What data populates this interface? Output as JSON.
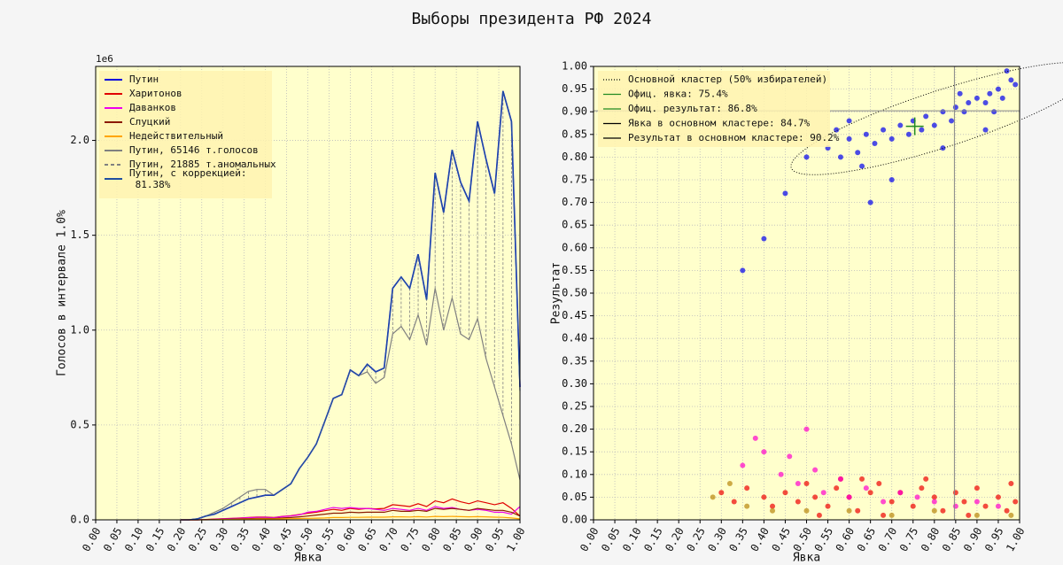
{
  "chart_data": [
    {
      "type": "line",
      "y_offset_label": "1e6",
      "xlabel": "Явка",
      "ylabel": "Голосов в интервале 1.0%",
      "xlim": [
        0,
        1
      ],
      "ylim": [
        0,
        2.39
      ],
      "xticks": [
        {
          "value": 0,
          "label": "0.00"
        },
        {
          "value": 0.05,
          "label": "0.05"
        },
        {
          "value": 0.1,
          "label": "0.10"
        },
        {
          "value": 0.15,
          "label": "0.15"
        },
        {
          "value": 0.2,
          "label": "0.20"
        },
        {
          "value": 0.25,
          "label": "0.25"
        },
        {
          "value": 0.3,
          "label": "0.30"
        },
        {
          "value": 0.35,
          "label": "0.35"
        },
        {
          "value": 0.4,
          "label": "0.40"
        },
        {
          "value": 0.45,
          "label": "0.45"
        },
        {
          "value": 0.5,
          "label": "0.50"
        },
        {
          "value": 0.55,
          "label": "0.55"
        },
        {
          "value": 0.6,
          "label": "0.60"
        },
        {
          "value": 0.65,
          "label": "0.65"
        },
        {
          "value": 0.7,
          "label": "0.70"
        },
        {
          "value": 0.75,
          "label": "0.75"
        },
        {
          "value": 0.8,
          "label": "0.80"
        },
        {
          "value": 0.85,
          "label": "0.85"
        },
        {
          "value": 0.9,
          "label": "0.90"
        },
        {
          "value": 0.95,
          "label": "0.95"
        },
        {
          "value": 1,
          "label": "1.00"
        }
      ],
      "yticks": [
        {
          "value": 0,
          "label": "0.0"
        },
        0.5,
        {
          "value": 1,
          "label": "1.0"
        },
        1.5,
        {
          "value": 2,
          "label": "2.0"
        }
      ],
      "grid": true,
      "x": [
        0.2,
        0.22,
        0.24,
        0.26,
        0.28,
        0.3,
        0.32,
        0.34,
        0.36,
        0.38,
        0.4,
        0.42,
        0.44,
        0.46,
        0.48,
        0.5,
        0.52,
        0.54,
        0.56,
        0.58,
        0.6,
        0.62,
        0.64,
        0.66,
        0.68,
        0.7,
        0.72,
        0.74,
        0.76,
        0.78,
        0.8,
        0.82,
        0.84,
        0.86,
        0.88,
        0.9,
        0.92,
        0.94,
        0.96,
        0.98,
        1.0
      ],
      "series": [
        {
          "name": "Путин",
          "color": "#0000dd",
          "values": [
            0,
            0,
            0.005,
            0.02,
            0.03,
            0.05,
            0.07,
            0.09,
            0.11,
            0.12,
            0.13,
            0.13,
            0.16,
            0.19,
            0.27,
            0.33,
            0.4,
            0.52,
            0.64,
            0.66,
            0.79,
            0.76,
            0.82,
            0.78,
            0.8,
            1.22,
            1.28,
            1.22,
            1.4,
            1.16,
            1.83,
            1.62,
            1.95,
            1.78,
            1.68,
            2.1,
            1.9,
            1.72,
            2.26,
            2.1,
            0.7
          ]
        },
        {
          "name": "Харитонов",
          "color": "#e00000",
          "values": [
            0,
            0,
            0,
            0.002,
            0.004,
            0.006,
            0.008,
            0.01,
            0.012,
            0.015,
            0.015,
            0.012,
            0.018,
            0.022,
            0.028,
            0.035,
            0.04,
            0.048,
            0.055,
            0.05,
            0.06,
            0.055,
            0.06,
            0.058,
            0.06,
            0.08,
            0.075,
            0.07,
            0.085,
            0.07,
            0.1,
            0.09,
            0.11,
            0.095,
            0.085,
            0.1,
            0.09,
            0.08,
            0.09,
            0.06,
            0.02
          ]
        },
        {
          "name": "Даванков",
          "color": "#ee00ee",
          "values": [
            0,
            0,
            0,
            0.001,
            0.003,
            0.005,
            0.007,
            0.009,
            0.011,
            0.013,
            0.013,
            0.011,
            0.017,
            0.02,
            0.026,
            0.04,
            0.045,
            0.055,
            0.065,
            0.06,
            0.065,
            0.06,
            0.06,
            0.055,
            0.05,
            0.06,
            0.055,
            0.05,
            0.06,
            0.05,
            0.07,
            0.06,
            0.065,
            0.055,
            0.05,
            0.055,
            0.05,
            0.04,
            0.04,
            0.03,
            0.07
          ]
        },
        {
          "name": "Слуцкий",
          "color": "#8b1a00",
          "values": [
            0,
            0,
            0,
            0.001,
            0.002,
            0.003,
            0.004,
            0.005,
            0.006,
            0.008,
            0.008,
            0.007,
            0.01,
            0.012,
            0.016,
            0.02,
            0.025,
            0.03,
            0.035,
            0.035,
            0.04,
            0.038,
            0.04,
            0.04,
            0.04,
            0.05,
            0.045,
            0.045,
            0.05,
            0.045,
            0.06,
            0.055,
            0.06,
            0.055,
            0.05,
            0.06,
            0.055,
            0.05,
            0.05,
            0.04,
            0.02
          ]
        },
        {
          "name": "Недействительный",
          "color": "#ffa500",
          "values": [
            0,
            0,
            0,
            0,
            0.001,
            0.002,
            0.002,
            0.003,
            0.003,
            0.004,
            0.004,
            0.004,
            0.005,
            0.006,
            0.007,
            0.008,
            0.009,
            0.01,
            0.012,
            0.012,
            0.013,
            0.013,
            0.014,
            0.014,
            0.014,
            0.016,
            0.016,
            0.015,
            0.017,
            0.015,
            0.018,
            0.017,
            0.018,
            0.017,
            0.016,
            0.017,
            0.016,
            0.014,
            0.013,
            0.01,
            0.005
          ]
        },
        {
          "name": "Путин, 65146 т.голосов",
          "color": "#808080",
          "values": [
            0,
            0,
            0.005,
            0.02,
            0.04,
            0.06,
            0.09,
            0.12,
            0.15,
            0.16,
            0.16,
            0.13,
            0.16,
            0.19,
            0.27,
            0.33,
            0.4,
            0.52,
            0.64,
            0.66,
            0.79,
            0.76,
            0.78,
            0.72,
            0.75,
            0.98,
            1.02,
            0.95,
            1.08,
            0.92,
            1.22,
            1.0,
            1.17,
            0.98,
            0.95,
            1.06,
            0.85,
            0.7,
            0.55,
            0.4,
            0.21
          ]
        },
        {
          "name": "Путин, 21885 т.аномальных",
          "color": "#808080",
          "style": "hatch"
        },
        {
          "name": "Путин, с коррекцией:\n 81.38%",
          "color": "#1f4fa0",
          "values": [
            0,
            0,
            0.005,
            0.02,
            0.03,
            0.05,
            0.07,
            0.09,
            0.11,
            0.12,
            0.13,
            0.13,
            0.16,
            0.19,
            0.27,
            0.33,
            0.4,
            0.52,
            0.64,
            0.66,
            0.79,
            0.76,
            0.82,
            0.78,
            0.8,
            1.22,
            1.28,
            1.22,
            1.4,
            1.16,
            1.83,
            1.62,
            1.95,
            1.78,
            1.68,
            2.1,
            1.9,
            1.72,
            2.26,
            2.1,
            0.68
          ]
        }
      ]
    },
    {
      "type": "scatter",
      "xlabel": "Явка",
      "ylabel": "Результат",
      "xlim": [
        0,
        1
      ],
      "ylim": [
        0,
        1
      ],
      "xticks": [
        {
          "value": 0,
          "label": "0.00"
        },
        {
          "value": 0.05,
          "label": "0.05"
        },
        {
          "value": 0.1,
          "label": "0.10"
        },
        {
          "value": 0.15,
          "label": "0.15"
        },
        {
          "value": 0.2,
          "label": "0.20"
        },
        {
          "value": 0.25,
          "label": "0.25"
        },
        {
          "value": 0.3,
          "label": "0.30"
        },
        {
          "value": 0.35,
          "label": "0.35"
        },
        {
          "value": 0.4,
          "label": "0.40"
        },
        {
          "value": 0.45,
          "label": "0.45"
        },
        {
          "value": 0.5,
          "label": "0.50"
        },
        {
          "value": 0.55,
          "label": "0.55"
        },
        {
          "value": 0.6,
          "label": "0.60"
        },
        {
          "value": 0.65,
          "label": "0.65"
        },
        {
          "value": 0.7,
          "label": "0.70"
        },
        {
          "value": 0.75,
          "label": "0.75"
        },
        {
          "value": 0.8,
          "label": "0.80"
        },
        {
          "value": 0.85,
          "label": "0.85"
        },
        {
          "value": 0.9,
          "label": "0.90"
        },
        {
          "value": 0.95,
          "label": "0.95"
        },
        {
          "value": 1,
          "label": "1.00"
        }
      ],
      "yticks": [
        {
          "value": 0,
          "label": "0.00"
        },
        {
          "value": 0.05,
          "label": "0.05"
        },
        {
          "value": 0.1,
          "label": "0.10"
        },
        {
          "value": 0.15,
          "label": "0.15"
        },
        {
          "value": 0.2,
          "label": "0.20"
        },
        {
          "value": 0.25,
          "label": "0.25"
        },
        {
          "value": 0.3,
          "label": "0.30"
        },
        {
          "value": 0.35,
          "label": "0.35"
        },
        {
          "value": 0.4,
          "label": "0.40"
        },
        {
          "value": 0.45,
          "label": "0.45"
        },
        {
          "value": 0.5,
          "label": "0.50"
        },
        {
          "value": 0.55,
          "label": "0.55"
        },
        {
          "value": 0.6,
          "label": "0.60"
        },
        {
          "value": 0.65,
          "label": "0.65"
        },
        {
          "value": 0.7,
          "label": "0.70"
        },
        {
          "value": 0.75,
          "label": "0.75"
        },
        {
          "value": 0.8,
          "label": "0.80"
        },
        {
          "value": 0.85,
          "label": "0.85"
        },
        {
          "value": 0.9,
          "label": "0.90"
        },
        {
          "value": 0.95,
          "label": "0.95"
        },
        {
          "value": 1,
          "label": "1.00"
        }
      ],
      "grid": true,
      "series": [
        {
          "color": "#0000ee",
          "x": [
            0.55,
            0.58,
            0.6,
            0.62,
            0.64,
            0.66,
            0.68,
            0.7,
            0.72,
            0.74,
            0.75,
            0.77,
            0.78,
            0.8,
            0.82,
            0.84,
            0.85,
            0.87,
            0.88,
            0.9,
            0.92,
            0.93,
            0.95,
            0.96,
            0.98,
            0.99,
            0.5,
            0.45,
            0.4,
            0.65,
            0.7,
            0.82,
            0.92,
            0.6,
            0.35,
            0.57,
            0.63,
            0.86,
            0.94,
            0.97
          ],
          "y": [
            0.82,
            0.8,
            0.84,
            0.81,
            0.85,
            0.83,
            0.86,
            0.84,
            0.87,
            0.85,
            0.88,
            0.86,
            0.89,
            0.87,
            0.9,
            0.88,
            0.91,
            0.9,
            0.92,
            0.93,
            0.92,
            0.94,
            0.95,
            0.93,
            0.97,
            0.96,
            0.8,
            0.72,
            0.62,
            0.7,
            0.75,
            0.82,
            0.86,
            0.88,
            0.55,
            0.86,
            0.78,
            0.94,
            0.9,
            0.99
          ]
        },
        {
          "color": "#ee0000",
          "x": [
            0.3,
            0.33,
            0.36,
            0.4,
            0.42,
            0.45,
            0.48,
            0.5,
            0.52,
            0.55,
            0.57,
            0.6,
            0.62,
            0.65,
            0.67,
            0.7,
            0.72,
            0.75,
            0.77,
            0.8,
            0.82,
            0.85,
            0.87,
            0.9,
            0.92,
            0.95,
            0.97,
            0.99,
            0.58,
            0.68,
            0.78,
            0.88,
            0.98,
            0.53,
            0.63
          ],
          "y": [
            0.06,
            0.04,
            0.07,
            0.05,
            0.03,
            0.06,
            0.04,
            0.08,
            0.05,
            0.03,
            0.07,
            0.05,
            0.02,
            0.06,
            0.08,
            0.04,
            0.06,
            0.03,
            0.07,
            0.05,
            0.02,
            0.06,
            0.04,
            0.07,
            0.03,
            0.05,
            0.02,
            0.04,
            0.09,
            0.01,
            0.09,
            0.01,
            0.08,
            0.01,
            0.09
          ]
        },
        {
          "color": "#ff00cc",
          "x": [
            0.35,
            0.4,
            0.44,
            0.48,
            0.5,
            0.54,
            0.58,
            0.6,
            0.64,
            0.68,
            0.72,
            0.76,
            0.8,
            0.85,
            0.9,
            0.95,
            0.38,
            0.46,
            0.52
          ],
          "y": [
            0.12,
            0.15,
            0.1,
            0.08,
            0.2,
            0.06,
            0.09,
            0.05,
            0.07,
            0.04,
            0.06,
            0.05,
            0.04,
            0.03,
            0.04,
            0.03,
            0.18,
            0.14,
            0.11
          ]
        },
        {
          "color": "#b8860b",
          "x": [
            0.28,
            0.32,
            0.36,
            0.42,
            0.5,
            0.6,
            0.7,
            0.8,
            0.9,
            0.98
          ],
          "y": [
            0.05,
            0.08,
            0.03,
            0.02,
            0.02,
            0.02,
            0.01,
            0.02,
            0.01,
            0.01
          ]
        }
      ],
      "legend": [
        {
          "name": "Основной кластер (50% избирателей)",
          "color": "#000",
          "dash": "1 2"
        },
        {
          "name": "Офиц. явка: 75.4%",
          "color": "#228b22"
        },
        {
          "name": "Офиц. результат: 86.8%",
          "color": "#228b22"
        },
        {
          "name": "Явка в основном кластере: 84.7%",
          "color": "#000"
        },
        {
          "name": "Результат в основном кластере: 90.2%",
          "color": "#000"
        }
      ],
      "official": {
        "x": 0.754,
        "y": 0.868
      },
      "cluster_lines": {
        "x": 0.847,
        "y": 0.902
      }
    }
  ],
  "title": "Выборы президента РФ 2024"
}
